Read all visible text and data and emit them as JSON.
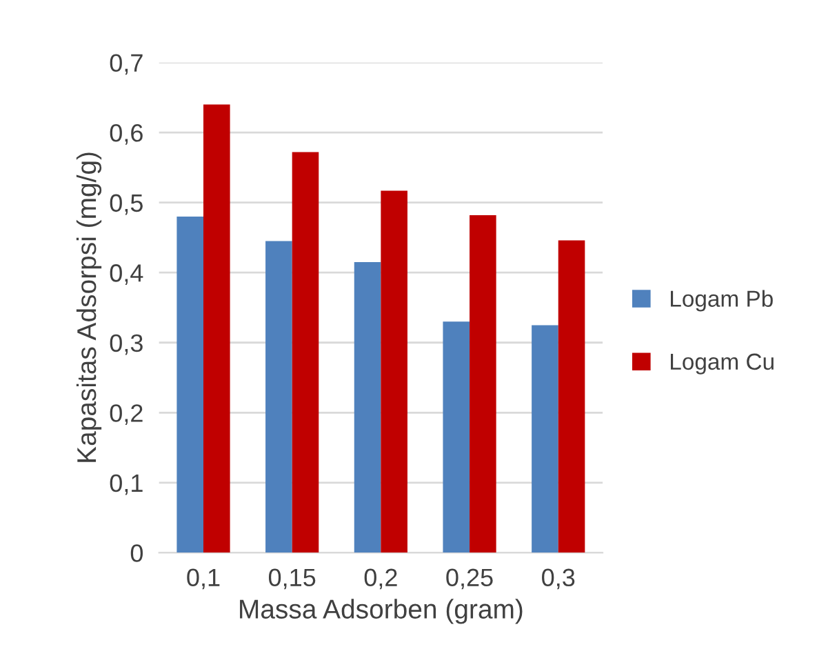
{
  "chart_data": {
    "type": "bar",
    "xlabel": "Massa Adsorben (gram)",
    "ylabel": "Kapasitas Adsorpsi (mg/g)",
    "categories": [
      "0,1",
      "0,15",
      "0,2",
      "0,25",
      "0,3"
    ],
    "series": [
      {
        "name": "Logam Pb",
        "color": "#4f81bd",
        "values": [
          0.48,
          0.445,
          0.415,
          0.33,
          0.325
        ]
      },
      {
        "name": "Logam Cu",
        "color": "#c00000",
        "values": [
          0.64,
          0.572,
          0.517,
          0.482,
          0.446
        ]
      }
    ],
    "ylim": [
      0,
      0.7
    ],
    "yticks": [
      0,
      {
        "value": 0.1,
        "label": "0,1"
      },
      {
        "value": 0.2,
        "label": "0,2"
      },
      {
        "value": 0.3,
        "label": "0,3"
      },
      {
        "value": 0.4,
        "label": "0,4"
      },
      {
        "value": 0.5,
        "label": "0,5"
      },
      {
        "value": 0.6,
        "label": "0,6"
      },
      {
        "value": 0.7,
        "label": "0,7"
      }
    ],
    "grid": "y",
    "legend": "right"
  }
}
